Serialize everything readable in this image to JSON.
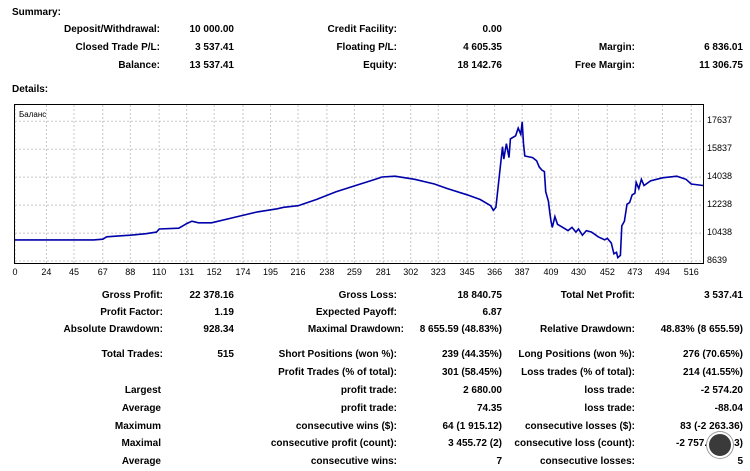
{
  "summary": {
    "heading": "Summary:",
    "deposit_label": "Deposit/Withdrawal:",
    "deposit_value": "10 000.00",
    "credit_label": "Credit Facility:",
    "credit_value": "0.00",
    "closed_pl_label": "Closed Trade P/L:",
    "closed_pl_value": "3 537.41",
    "floating_label": "Floating P/L:",
    "floating_value": "4 605.35",
    "margin_label": "Margin:",
    "margin_value": "6 836.01",
    "balance_label": "Balance:",
    "balance_value": "13 537.41",
    "equity_label": "Equity:",
    "equity_value": "18 142.76",
    "free_margin_label": "Free Margin:",
    "free_margin_value": "11 306.75"
  },
  "details": {
    "heading": "Details:",
    "gross_profit_label": "Gross Profit:",
    "gross_profit_value": "22 378.16",
    "gross_loss_label": "Gross Loss:",
    "gross_loss_value": "18 840.75",
    "net_profit_label": "Total Net Profit:",
    "net_profit_value": "3 537.41",
    "profit_factor_label": "Profit Factor:",
    "profit_factor_value": "1.19",
    "expected_payoff_label": "Expected Payoff:",
    "expected_payoff_value": "6.87",
    "abs_dd_label": "Absolute Drawdown:",
    "abs_dd_value": "928.34",
    "max_dd_label": "Maximal Drawdown:",
    "max_dd_value": "8 655.59 (48.83%)",
    "rel_dd_label": "Relative Drawdown:",
    "rel_dd_value": "48.83% (8 655.59)",
    "total_trades_label": "Total Trades:",
    "total_trades_value": "515",
    "short_label": "Short Positions (won %):",
    "short_value": "239 (44.35%)",
    "long_label": "Long Positions (won %):",
    "long_value": "276 (70.65%)",
    "profit_trades_label": "Profit Trades (% of total):",
    "profit_trades_value": "301 (58.45%)",
    "loss_trades_label": "Loss trades (% of total):",
    "loss_trades_value": "214 (41.55%)",
    "largest_label": "Largest",
    "largest_profit_label": "profit trade:",
    "largest_profit_value": "2 680.00",
    "largest_loss_label": "loss trade:",
    "largest_loss_value": "-2 574.20",
    "average_label": "Average",
    "average_profit_label": "profit trade:",
    "average_profit_value": "74.35",
    "average_loss_label": "loss trade:",
    "average_loss_value": "-88.04",
    "maximum_label": "Maximum",
    "max_cons_wins_label": "consecutive wins ($):",
    "max_cons_wins_value": "64 (1 915.12)",
    "max_cons_losses_label": "consecutive losses ($):",
    "max_cons_losses_value": "83 (-2 263.36)",
    "maximal_label": "Maximal",
    "maximal_cons_profit_label": "consecutive profit (count):",
    "maximal_cons_profit_value": "3 455.72 (2)",
    "maximal_cons_loss_label": "consecutive loss (count):",
    "maximal_cons_loss_value": "-2 757.",
    "maximal_cons_loss_tail": "3)",
    "avg_cons_label": "Average",
    "avg_cons_wins_label": "consecutive wins:",
    "avg_cons_wins_value": "7",
    "avg_cons_losses_label": "consecutive losses:",
    "avg_cons_losses_value": "5"
  },
  "chart_data": {
    "type": "line",
    "title": "Баланс",
    "line_color": "#0000aa",
    "xlim": [
      0,
      525
    ],
    "ylim": [
      8639,
      18300
    ],
    "x_ticks": [
      "0",
      "24",
      "45",
      "67",
      "88",
      "110",
      "131",
      "152",
      "174",
      "195",
      "216",
      "238",
      "259",
      "281",
      "302",
      "323",
      "345",
      "366",
      "387",
      "409",
      "430",
      "452",
      "473",
      "494",
      "516"
    ],
    "y_ticks": [
      "17637",
      "15837",
      "14038",
      "12238",
      "10438",
      "8639"
    ],
    "series": [
      {
        "name": "Balance",
        "points": [
          [
            0,
            10000
          ],
          [
            60,
            10000
          ],
          [
            67,
            10040
          ],
          [
            70,
            10200
          ],
          [
            88,
            10300
          ],
          [
            100,
            10400
          ],
          [
            108,
            10500
          ],
          [
            110,
            10700
          ],
          [
            125,
            10750
          ],
          [
            128,
            10900
          ],
          [
            131,
            11050
          ],
          [
            135,
            11200
          ],
          [
            140,
            11100
          ],
          [
            150,
            11100
          ],
          [
            165,
            11400
          ],
          [
            185,
            11800
          ],
          [
            200,
            12000
          ],
          [
            205,
            12100
          ],
          [
            216,
            12200
          ],
          [
            230,
            12600
          ],
          [
            245,
            13100
          ],
          [
            260,
            13500
          ],
          [
            275,
            13900
          ],
          [
            280,
            14050
          ],
          [
            290,
            14100
          ],
          [
            305,
            13900
          ],
          [
            320,
            13600
          ],
          [
            330,
            13300
          ],
          [
            345,
            12900
          ],
          [
            355,
            12600
          ],
          [
            363,
            12200
          ],
          [
            365,
            11900
          ],
          [
            367,
            12100
          ],
          [
            372,
            16000
          ],
          [
            373,
            15200
          ],
          [
            375,
            16200
          ],
          [
            377,
            15300
          ],
          [
            378,
            16500
          ],
          [
            382,
            16700
          ],
          [
            384,
            17200
          ],
          [
            386,
            16800
          ],
          [
            387,
            17600
          ],
          [
            388,
            16200
          ],
          [
            389,
            15400
          ],
          [
            395,
            15300
          ],
          [
            398,
            15100
          ],
          [
            400,
            14700
          ],
          [
            402,
            14500
          ],
          [
            404,
            14400
          ],
          [
            405,
            13100
          ],
          [
            407,
            12500
          ],
          [
            408,
            11800
          ],
          [
            409,
            11200
          ],
          [
            410,
            10800
          ],
          [
            412,
            11500
          ],
          [
            414,
            11000
          ],
          [
            418,
            10800
          ],
          [
            422,
            10600
          ],
          [
            425,
            10800
          ],
          [
            428,
            10500
          ],
          [
            430,
            10700
          ],
          [
            433,
            10300
          ],
          [
            436,
            10600
          ],
          [
            440,
            10500
          ],
          [
            445,
            10200
          ],
          [
            450,
            10000
          ],
          [
            452,
            10100
          ],
          [
            455,
            9800
          ],
          [
            457,
            9100
          ],
          [
            459,
            9200
          ],
          [
            460,
            8850
          ],
          [
            462,
            9000
          ],
          [
            463,
            10900
          ],
          [
            465,
            11200
          ],
          [
            467,
            12300
          ],
          [
            469,
            12400
          ],
          [
            471,
            12900
          ],
          [
            473,
            13000
          ],
          [
            474,
            13700
          ],
          [
            476,
            13300
          ],
          [
            478,
            13900
          ],
          [
            480,
            13500
          ],
          [
            485,
            13800
          ],
          [
            494,
            14000
          ],
          [
            505,
            14100
          ],
          [
            512,
            13900
          ],
          [
            516,
            13600
          ],
          [
            525,
            13500
          ]
        ]
      }
    ]
  }
}
